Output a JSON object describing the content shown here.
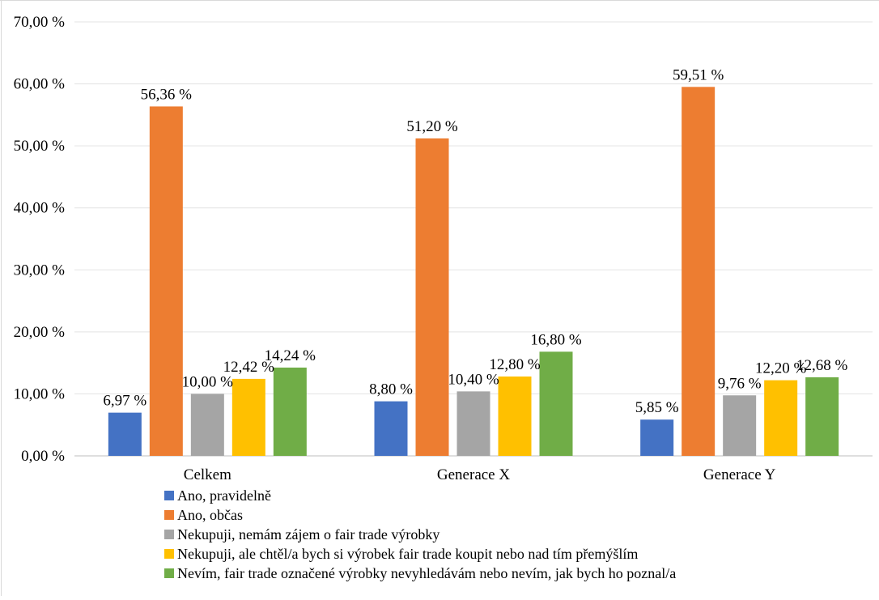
{
  "chart_data": {
    "type": "bar",
    "title": "",
    "xlabel": "",
    "ylabel": "",
    "ylim": [
      0,
      70
    ],
    "y_tick_step": 10,
    "y_tick_labels": [
      "0,00 %",
      "10,00 %",
      "20,00 %",
      "30,00 %",
      "40,00 %",
      "50,00 %",
      "60,00 %",
      "70,00 %"
    ],
    "grid": true,
    "legend_position": "bottom-left",
    "categories": [
      "Celkem",
      "Generace X",
      "Generace Y"
    ],
    "series": [
      {
        "name": "Ano, pravidelně",
        "color": "#4472C4",
        "values": [
          6.97,
          8.8,
          5.85
        ],
        "labels": [
          "6,97 %",
          "8,80 %",
          "5,85 %"
        ]
      },
      {
        "name": "Ano, občas",
        "color": "#ED7D31",
        "values": [
          56.36,
          51.2,
          59.51
        ],
        "labels": [
          "56,36 %",
          "51,20 %",
          "59,51 %"
        ]
      },
      {
        "name": "Nekupuji, nemám zájem o fair trade výrobky",
        "color": "#A5A5A5",
        "values": [
          10.0,
          10.4,
          9.76
        ],
        "labels": [
          "10,00 %",
          "10,40 %",
          "9,76 %"
        ]
      },
      {
        "name": "Nekupuji, ale chtěl/a bych si výrobek fair trade koupit nebo nad tím přemýšlím",
        "color": "#FFC000",
        "values": [
          12.42,
          12.8,
          12.2
        ],
        "labels": [
          "12,42 %",
          "12,80 %",
          "12,20 %"
        ]
      },
      {
        "name": "Nevím, fair trade označené výrobky nevyhledávám nebo nevím, jak bych ho poznal/a",
        "color": "#70AD47",
        "values": [
          14.24,
          16.8,
          12.68
        ],
        "labels": [
          "14,24 %",
          "16,80 %",
          "12,68 %"
        ]
      }
    ]
  }
}
